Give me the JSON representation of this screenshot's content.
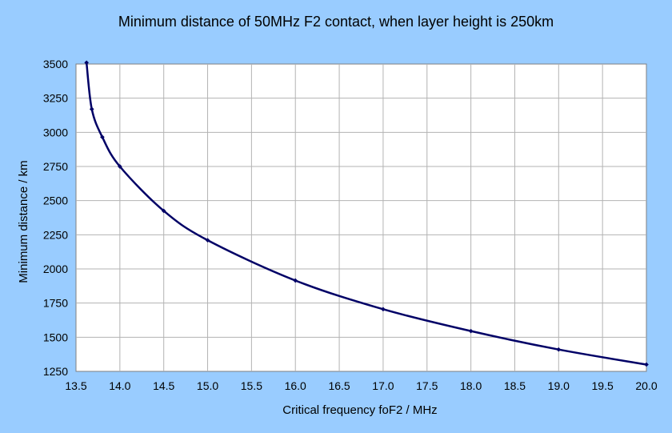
{
  "chart_data": {
    "type": "line",
    "title": "Minimum distance of 50MHz F2 contact, when layer height is 250km",
    "xlabel": "Critical frequency foF2 / MHz",
    "ylabel": "Minimum distance / km",
    "xlim": [
      13.5,
      20.0
    ],
    "ylim": [
      1250,
      3500
    ],
    "xticks": [
      "13.5",
      "14.0",
      "14.5",
      "15.0",
      "15.5",
      "16.0",
      "16.5",
      "17.0",
      "17.5",
      "18.0",
      "18.5",
      "19.0",
      "19.5",
      "20.0"
    ],
    "yticks": [
      "1250",
      "1500",
      "1750",
      "2000",
      "2250",
      "2500",
      "2750",
      "3000",
      "3250",
      "3500"
    ],
    "grid": true,
    "legend": "none",
    "series": [
      {
        "color": "#000066",
        "x": [
          13.62,
          13.68,
          13.8,
          14.0,
          14.5,
          15.0,
          16.0,
          17.0,
          18.0,
          19.0,
          20.0
        ],
        "y": [
          3510,
          3170,
          2965,
          2750,
          2425,
          2210,
          1915,
          1705,
          1545,
          1410,
          1300
        ]
      }
    ]
  }
}
